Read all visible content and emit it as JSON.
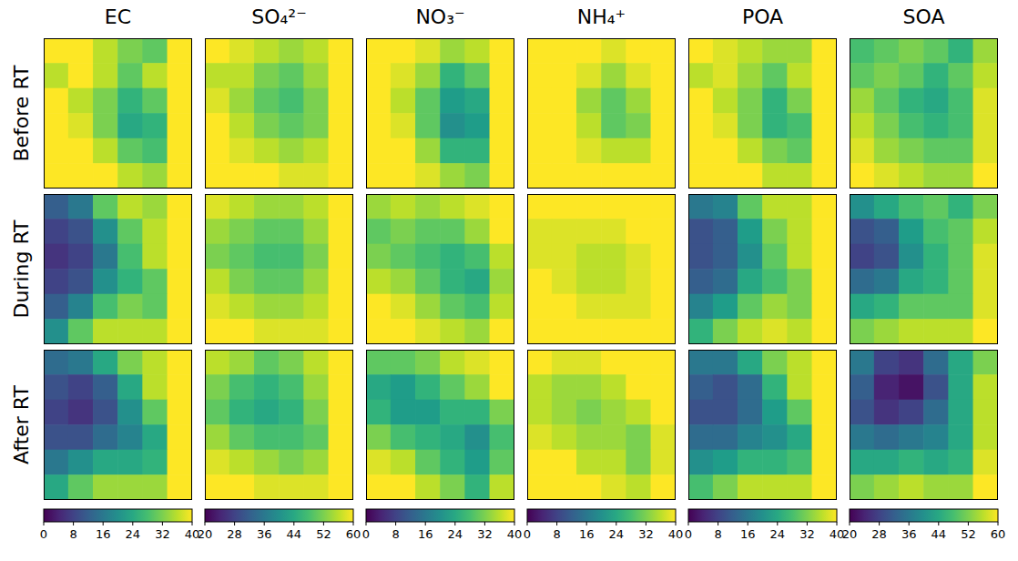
{
  "chart_data": {
    "type": "heatmap",
    "tick_labels": false,
    "row_labels": [
      "Before RT",
      "During RT",
      "After RT"
    ],
    "panels": [
      {
        "title": "EC",
        "colorbar": {
          "range": [
            0,
            40
          ],
          "ticks": [
            0,
            8,
            16,
            24,
            32,
            40
          ]
        },
        "cells": [
          [
            [
              40,
              40,
              36,
              32,
              30,
              40
            ],
            [
              36,
              40,
              36,
              30,
              36,
              40
            ],
            [
              40,
              36,
              32,
              26,
              30,
              40
            ],
            [
              40,
              38,
              32,
              24,
              26,
              40
            ],
            [
              40,
              40,
              36,
              30,
              28,
              40
            ],
            [
              40,
              40,
              40,
              36,
              34,
              40
            ]
          ],
          [
            [
              12,
              16,
              30,
              36,
              34,
              40
            ],
            [
              8,
              10,
              20,
              30,
              36,
              40
            ],
            [
              6,
              8,
              16,
              28,
              36,
              40
            ],
            [
              8,
              10,
              20,
              26,
              30,
              40
            ],
            [
              12,
              18,
              28,
              32,
              30,
              40
            ],
            [
              20,
              30,
              36,
              36,
              36,
              40
            ]
          ],
          [
            [
              14,
              16,
              24,
              32,
              36,
              40
            ],
            [
              10,
              8,
              12,
              24,
              36,
              40
            ],
            [
              8,
              6,
              10,
              20,
              30,
              40
            ],
            [
              10,
              10,
              14,
              18,
              24,
              40
            ],
            [
              16,
              20,
              24,
              24,
              26,
              40
            ],
            [
              24,
              30,
              34,
              34,
              34,
              40
            ]
          ]
        ]
      },
      {
        "title": "SO₄²⁻",
        "colorbar": {
          "range": [
            20,
            60
          ],
          "ticks": [
            20,
            28,
            36,
            44,
            52,
            60
          ]
        },
        "cells": [
          [
            [
              60,
              58,
              56,
              54,
              56,
              60
            ],
            [
              56,
              56,
              52,
              50,
              54,
              60
            ],
            [
              58,
              54,
              50,
              48,
              52,
              60
            ],
            [
              60,
              56,
              52,
              50,
              52,
              60
            ],
            [
              60,
              58,
              56,
              54,
              56,
              60
            ],
            [
              60,
              60,
              60,
              58,
              58,
              60
            ]
          ],
          [
            [
              58,
              56,
              54,
              54,
              56,
              60
            ],
            [
              54,
              52,
              50,
              50,
              54,
              60
            ],
            [
              52,
              50,
              48,
              48,
              52,
              60
            ],
            [
              56,
              52,
              50,
              50,
              54,
              60
            ],
            [
              58,
              56,
              54,
              54,
              56,
              60
            ],
            [
              60,
              60,
              58,
              58,
              58,
              60
            ]
          ],
          [
            [
              56,
              54,
              50,
              52,
              56,
              60
            ],
            [
              52,
              48,
              46,
              48,
              54,
              60
            ],
            [
              50,
              46,
              44,
              46,
              52,
              60
            ],
            [
              54,
              50,
              48,
              48,
              50,
              60
            ],
            [
              58,
              56,
              54,
              52,
              54,
              60
            ],
            [
              60,
              60,
              58,
              58,
              58,
              60
            ]
          ]
        ]
      },
      {
        "title": "NO₃⁻",
        "colorbar": {
          "range": [
            0,
            40
          ],
          "ticks": [
            0,
            8,
            16,
            24,
            32,
            40
          ]
        },
        "cells": [
          [
            [
              40,
              40,
              38,
              34,
              36,
              40
            ],
            [
              40,
              38,
              34,
              26,
              30,
              40
            ],
            [
              40,
              36,
              30,
              22,
              24,
              40
            ],
            [
              40,
              38,
              30,
              20,
              22,
              40
            ],
            [
              40,
              40,
              34,
              26,
              26,
              40
            ],
            [
              40,
              40,
              38,
              34,
              32,
              40
            ]
          ],
          [
            [
              34,
              36,
              34,
              36,
              38,
              40
            ],
            [
              30,
              32,
              30,
              30,
              34,
              40
            ],
            [
              32,
              30,
              28,
              26,
              28,
              36
            ],
            [
              36,
              34,
              30,
              26,
              24,
              34
            ],
            [
              40,
              38,
              34,
              30,
              28,
              36
            ],
            [
              40,
              40,
              38,
              36,
              34,
              40
            ]
          ],
          [
            [
              30,
              30,
              32,
              36,
              38,
              40
            ],
            [
              24,
              22,
              26,
              30,
              34,
              40
            ],
            [
              26,
              22,
              22,
              26,
              26,
              32
            ],
            [
              32,
              28,
              26,
              24,
              20,
              28
            ],
            [
              38,
              36,
              30,
              26,
              22,
              30
            ],
            [
              40,
              40,
              36,
              32,
              26,
              36
            ]
          ]
        ]
      },
      {
        "title": "NH₄⁺",
        "colorbar": {
          "range": [
            0,
            40
          ],
          "ticks": [
            0,
            8,
            16,
            24,
            32,
            40
          ]
        },
        "cells": [
          [
            [
              40,
              40,
              40,
              38,
              40,
              40
            ],
            [
              40,
              40,
              38,
              34,
              38,
              40
            ],
            [
              40,
              40,
              34,
              30,
              34,
              40
            ],
            [
              40,
              40,
              36,
              30,
              32,
              40
            ],
            [
              40,
              40,
              38,
              36,
              36,
              40
            ],
            [
              40,
              40,
              40,
              40,
              40,
              40
            ]
          ],
          [
            [
              40,
              40,
              40,
              40,
              40,
              40
            ],
            [
              38,
              38,
              38,
              38,
              40,
              40
            ],
            [
              38,
              38,
              36,
              36,
              38,
              40
            ],
            [
              40,
              38,
              36,
              36,
              38,
              40
            ],
            [
              40,
              40,
              38,
              38,
              38,
              40
            ],
            [
              40,
              40,
              40,
              40,
              40,
              40
            ]
          ],
          [
            [
              40,
              38,
              38,
              40,
              40,
              40
            ],
            [
              36,
              34,
              34,
              36,
              40,
              40
            ],
            [
              36,
              34,
              32,
              34,
              36,
              40
            ],
            [
              38,
              36,
              34,
              34,
              32,
              38
            ],
            [
              40,
              40,
              36,
              36,
              32,
              38
            ],
            [
              40,
              40,
              40,
              38,
              36,
              40
            ]
          ]
        ]
      },
      {
        "title": "POA",
        "colorbar": {
          "range": [
            0,
            40
          ],
          "ticks": [
            0,
            8,
            16,
            24,
            32,
            40
          ]
        },
        "cells": [
          [
            [
              40,
              38,
              36,
              34,
              34,
              40
            ],
            [
              36,
              38,
              34,
              30,
              36,
              40
            ],
            [
              40,
              36,
              32,
              26,
              32,
              40
            ],
            [
              40,
              38,
              32,
              26,
              28,
              40
            ],
            [
              40,
              40,
              36,
              32,
              30,
              40
            ],
            [
              40,
              40,
              40,
              36,
              36,
              40
            ]
          ],
          [
            [
              16,
              18,
              30,
              36,
              36,
              40
            ],
            [
              10,
              12,
              22,
              32,
              36,
              40
            ],
            [
              10,
              12,
              20,
              30,
              36,
              40
            ],
            [
              12,
              14,
              24,
              28,
              32,
              40
            ],
            [
              18,
              22,
              30,
              34,
              32,
              40
            ],
            [
              26,
              32,
              36,
              38,
              36,
              40
            ]
          ],
          [
            [
              16,
              16,
              24,
              32,
              36,
              40
            ],
            [
              12,
              10,
              14,
              26,
              36,
              40
            ],
            [
              10,
              10,
              14,
              22,
              30,
              40
            ],
            [
              14,
              14,
              18,
              20,
              24,
              40
            ],
            [
              20,
              22,
              26,
              26,
              28,
              40
            ],
            [
              28,
              32,
              36,
              36,
              36,
              40
            ]
          ]
        ]
      },
      {
        "title": "SOA",
        "colorbar": {
          "range": [
            20,
            60
          ],
          "ticks": [
            20,
            28,
            36,
            44,
            52,
            60
          ]
        },
        "cells": [
          [
            [
              48,
              50,
              52,
              50,
              46,
              54
            ],
            [
              50,
              52,
              50,
              46,
              50,
              56
            ],
            [
              54,
              50,
              46,
              44,
              48,
              58
            ],
            [
              56,
              52,
              48,
              46,
              48,
              58
            ],
            [
              58,
              54,
              52,
              50,
              50,
              58
            ],
            [
              60,
              58,
              56,
              54,
              54,
              60
            ]
          ],
          [
            [
              40,
              44,
              48,
              50,
              46,
              52
            ],
            [
              30,
              32,
              42,
              48,
              50,
              56
            ],
            [
              28,
              30,
              40,
              46,
              50,
              58
            ],
            [
              34,
              36,
              44,
              46,
              50,
              58
            ],
            [
              44,
              46,
              50,
              50,
              50,
              58
            ],
            [
              52,
              54,
              56,
              56,
              56,
              60
            ]
          ],
          [
            [
              36,
              28,
              26,
              34,
              44,
              52
            ],
            [
              32,
              24,
              22,
              30,
              44,
              56
            ],
            [
              30,
              26,
              28,
              34,
              44,
              56
            ],
            [
              36,
              34,
              36,
              38,
              44,
              56
            ],
            [
              44,
              44,
              46,
              44,
              46,
              58
            ],
            [
              52,
              54,
              56,
              54,
              54,
              60
            ]
          ]
        ]
      }
    ]
  }
}
